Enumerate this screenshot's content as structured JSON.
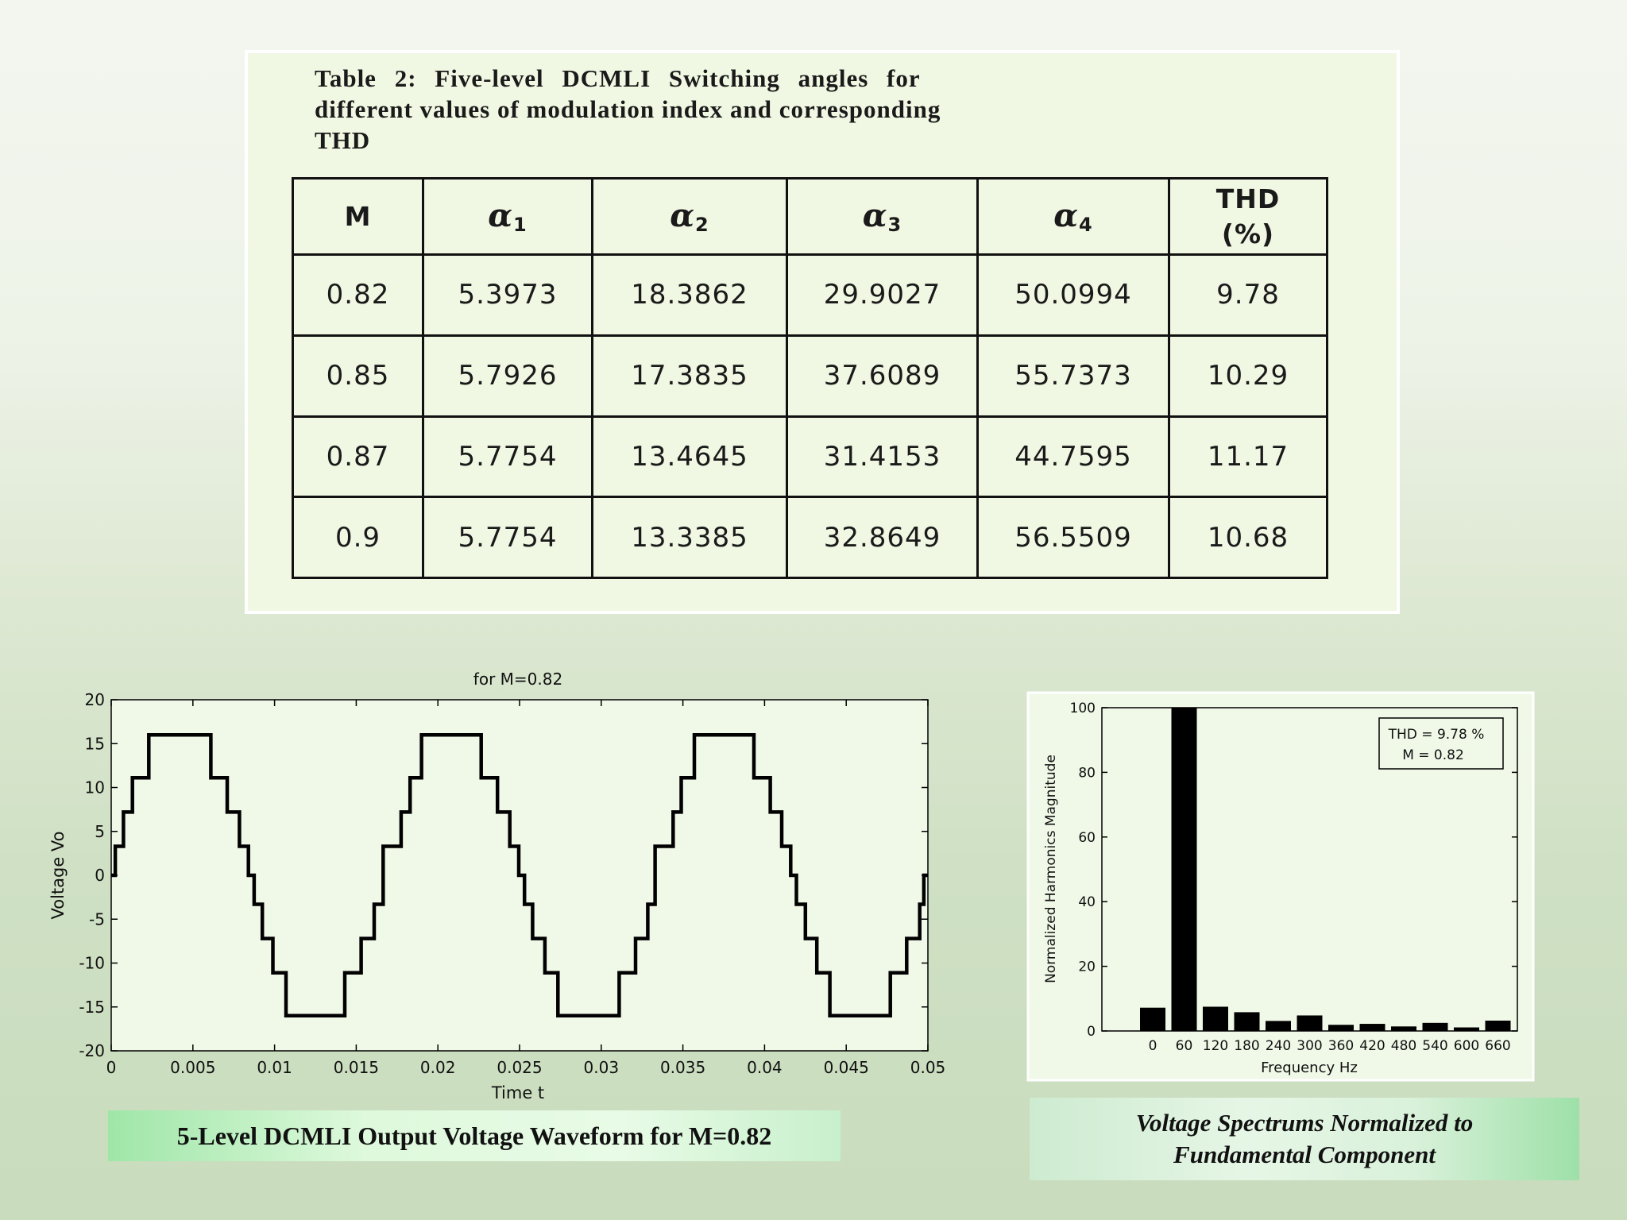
{
  "table": {
    "caption_line1": "Table 2: Five-level DCMLI Switching angles for",
    "caption_line2": "different values of modulation index and corresponding",
    "caption_line3": "THD",
    "headers": {
      "m": "M",
      "alpha": "α",
      "alpha_subs": [
        "1",
        "2",
        "3",
        "4"
      ],
      "thd_line1": "THD",
      "thd_line2": "(%)"
    },
    "rows": [
      [
        "0.82",
        "5.3973",
        "18.3862",
        "29.9027",
        "50.0994",
        "9.78"
      ],
      [
        "0.85",
        "5.7926",
        "17.3835",
        "37.6089",
        "55.7373",
        "10.29"
      ],
      [
        "0.87",
        "5.7754",
        "13.4645",
        "31.4153",
        "44.7595",
        "11.17"
      ],
      [
        "0.9",
        "5.7754",
        "13.3385",
        "32.8649",
        "56.5509",
        "10.68"
      ]
    ]
  },
  "chart_data": [
    {
      "type": "line",
      "title": "for M=0.82",
      "xlabel": "Time  t",
      "ylabel": "Voltage  Vo",
      "xlim": [
        0,
        0.05
      ],
      "ylim": [
        -20,
        20
      ],
      "xticks": [
        "0",
        "0.005",
        "0.01",
        "0.015",
        "0.02",
        "0.025",
        "0.03",
        "0.035",
        "0.04",
        "0.045",
        "0.05"
      ],
      "yticks": [
        "20",
        "15",
        "10",
        "5",
        "0",
        "-5",
        "-10",
        "-15",
        "-20"
      ],
      "grid": false,
      "series": [
        {
          "x": [
            0,
            0.00025,
            0.00025,
            0.00075,
            0.00075,
            0.0013,
            0.0013,
            0.0023,
            0.0023,
            0.0061,
            0.0061,
            0.0071,
            0.0071,
            0.00785,
            0.00785,
            0.0084,
            0.0084,
            0.00875,
            0.00875,
            0.00925,
            0.00925,
            0.0099,
            0.0099,
            0.0107,
            0.0107,
            0.0143,
            0.0143,
            0.0153,
            0.0153,
            0.0161,
            0.0161,
            0.01665,
            0.01665,
            0.01775,
            0.01775,
            0.0183,
            0.0183,
            0.019,
            0.019,
            0.02265,
            0.02265,
            0.02365,
            0.02365,
            0.0244,
            0.0244,
            0.02495,
            0.02495,
            0.0253,
            0.0253,
            0.0258,
            0.0258,
            0.02655,
            0.02655,
            0.02735,
            0.02735,
            0.0311,
            0.0311,
            0.0321,
            0.0321,
            0.03285,
            0.03285,
            0.0333,
            0.0333,
            0.0344,
            0.0344,
            0.0349,
            0.0349,
            0.0357,
            0.0357,
            0.03935,
            0.03935,
            0.04035,
            0.04035,
            0.04105,
            0.04105,
            0.0416,
            0.0416,
            0.04195,
            0.04195,
            0.0425,
            0.0425,
            0.0432,
            0.0432,
            0.044,
            0.044,
            0.0477,
            0.0477,
            0.0487,
            0.0487,
            0.0495,
            0.0495,
            0.04975,
            0.04975,
            0.05
          ],
          "y": [
            0,
            0,
            3.3,
            3.3,
            7.2,
            7.2,
            11.1,
            11.1,
            16,
            16,
            11.1,
            11.1,
            7.2,
            7.2,
            3.3,
            3.3,
            0,
            0,
            -3.3,
            -3.3,
            -7.2,
            -7.2,
            -11.1,
            -11.1,
            -16,
            -16,
            -11.1,
            -11.1,
            -7.2,
            -7.2,
            -3.3,
            -3.3,
            3.3,
            3.3,
            7.2,
            7.2,
            11.1,
            11.1,
            16,
            16,
            11.1,
            11.1,
            7.2,
            7.2,
            3.3,
            3.3,
            0,
            0,
            -3.3,
            -3.3,
            -7.2,
            -7.2,
            -11.1,
            -11.1,
            -16,
            -16,
            -11.1,
            -11.1,
            -7.2,
            -7.2,
            -3.3,
            -3.3,
            3.3,
            3.3,
            7.2,
            7.2,
            11.1,
            11.1,
            16,
            16,
            11.1,
            11.1,
            7.2,
            7.2,
            3.3,
            3.3,
            0,
            0,
            -3.3,
            -3.3,
            -7.2,
            -7.2,
            -11.1,
            -11.1,
            -16,
            -16,
            -11.1,
            -11.1,
            -7.2,
            -7.2,
            -3.3,
            -3.3,
            0,
            0
          ]
        }
      ],
      "color": "#000000"
    },
    {
      "type": "bar",
      "title": "",
      "xlabel": "Frequency Hz",
      "ylabel": "Normalized Harmonics Magnitude",
      "categories": [
        "0",
        "60",
        "120",
        "180",
        "240",
        "300",
        "360",
        "420",
        "480",
        "540",
        "600",
        "660"
      ],
      "values": [
        7.2,
        100,
        7.5,
        5.8,
        3.1,
        4.8,
        1.9,
        2.2,
        1.4,
        2.5,
        1.1,
        3.2
      ],
      "ylim": [
        0,
        100
      ],
      "yticks": [
        "0",
        "20",
        "40",
        "60",
        "80",
        "100"
      ],
      "legend_line1": "THD = 9.78 %",
      "legend_line2": "M = 0.82",
      "legend_position": "top-right",
      "grid": false,
      "color": "#000000"
    }
  ],
  "labels": {
    "waveform": "5-Level DCMLI Output Voltage Waveform for M=0.82",
    "spectrum_line1": "Voltage Spectrums Normalized to",
    "spectrum_line2": "Fundamental Component"
  }
}
